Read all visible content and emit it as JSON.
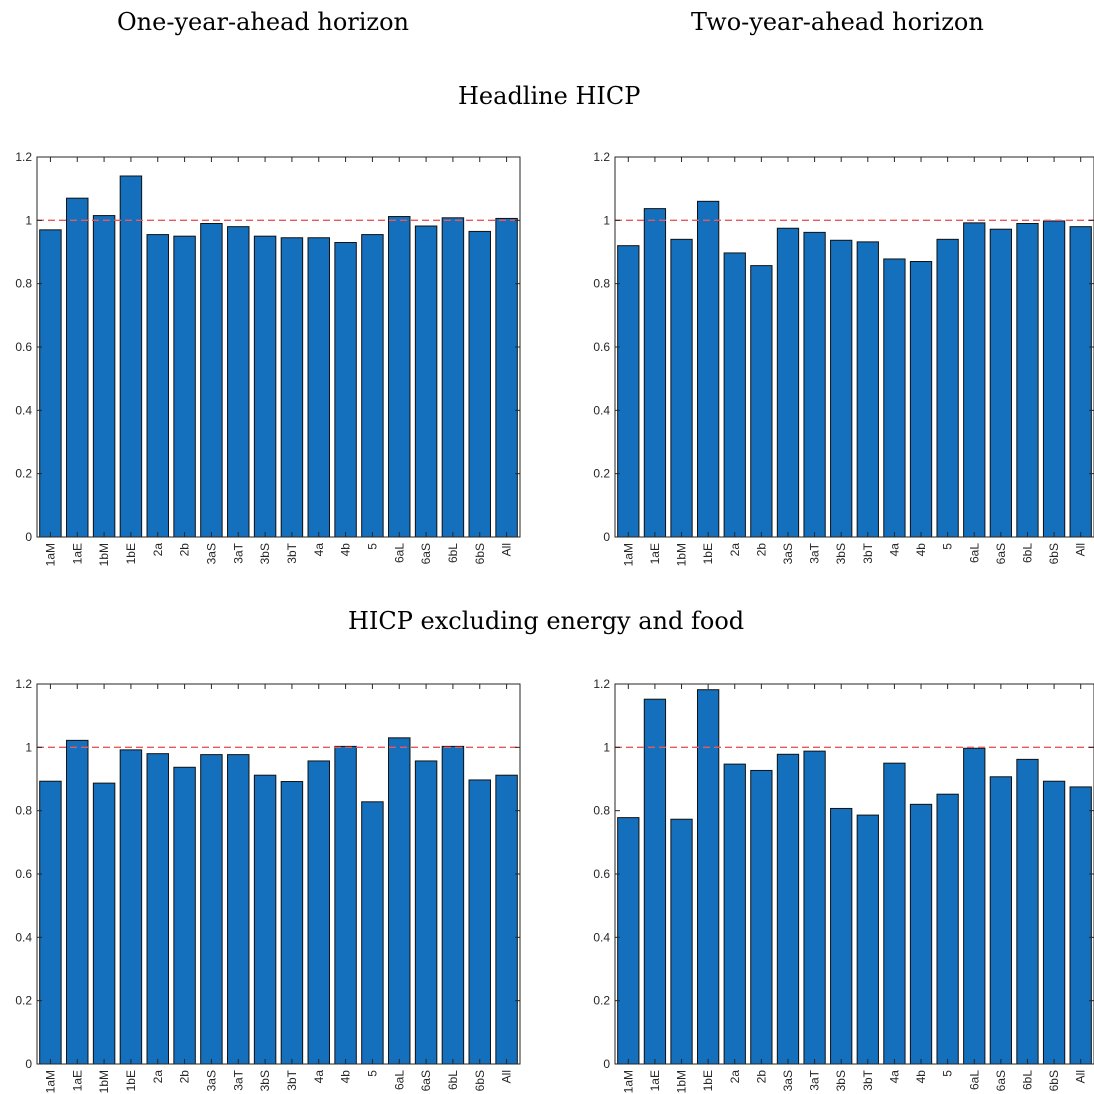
{
  "columns": [
    "One-year-ahead horizon",
    "Two-year-ahead horizon"
  ],
  "rows": [
    "Headline HICP",
    "HICP excluding energy and food"
  ],
  "colors": {
    "bar": "#1470bd",
    "bar_edge": "#111111",
    "ref_line": "#e8595b",
    "axis": "#262626"
  },
  "chart_data": [
    {
      "type": "bar",
      "categories": [
        "1aM",
        "1aE",
        "1bM",
        "1bE",
        "2a",
        "2b",
        "3aS",
        "3aT",
        "3bS",
        "3bT",
        "4a",
        "4b",
        "5",
        "6aL",
        "6aS",
        "6bL",
        "6bS",
        "All"
      ],
      "values": [
        0.97,
        1.07,
        1.015,
        1.14,
        0.955,
        0.95,
        0.99,
        0.98,
        0.95,
        0.945,
        0.945,
        0.93,
        0.955,
        1.012,
        0.982,
        1.008,
        0.965,
        1.006
      ],
      "ylim": [
        0,
        1.2
      ],
      "yticks": [
        "0",
        "0.2",
        "0.4",
        "0.6",
        "0.8",
        "1",
        "1.2"
      ],
      "reference_line": 1,
      "grid": false
    },
    {
      "type": "bar",
      "categories": [
        "1aM",
        "1aE",
        "1bM",
        "1bE",
        "2a",
        "2b",
        "3aS",
        "3aT",
        "3bS",
        "3bT",
        "4a",
        "4b",
        "5",
        "6aL",
        "6aS",
        "6bL",
        "6bS",
        "All"
      ],
      "values": [
        0.92,
        1.037,
        0.94,
        1.06,
        0.897,
        0.857,
        0.975,
        0.962,
        0.937,
        0.932,
        0.878,
        0.87,
        0.94,
        0.992,
        0.972,
        0.99,
        0.998,
        0.98
      ],
      "ylim": [
        0,
        1.2
      ],
      "yticks": [
        "0",
        "0.2",
        "0.4",
        "0.6",
        "0.8",
        "1",
        "1.2"
      ],
      "reference_line": 1,
      "grid": false
    },
    {
      "type": "bar",
      "categories": [
        "1aM",
        "1aE",
        "1bM",
        "1bE",
        "2a",
        "2b",
        "3aS",
        "3aT",
        "3bS",
        "3bT",
        "4a",
        "4b",
        "5",
        "6aL",
        "6aS",
        "6bL",
        "6bS",
        "All"
      ],
      "values": [
        0.893,
        1.022,
        0.887,
        0.992,
        0.98,
        0.937,
        0.977,
        0.977,
        0.912,
        0.892,
        0.957,
        1.003,
        0.828,
        1.03,
        0.957,
        1.003,
        0.897,
        0.912
      ],
      "ylim": [
        0,
        1.2
      ],
      "yticks": [
        "0",
        "0.2",
        "0.4",
        "0.6",
        "0.8",
        "1",
        "1.2"
      ],
      "reference_line": 1,
      "grid": false
    },
    {
      "type": "bar",
      "categories": [
        "1aM",
        "1aE",
        "1bM",
        "1bE",
        "2a",
        "2b",
        "3aS",
        "3aT",
        "3bS",
        "3bT",
        "4a",
        "4b",
        "5",
        "6aL",
        "6aS",
        "6bL",
        "6bS",
        "All"
      ],
      "values": [
        0.778,
        1.152,
        0.773,
        1.182,
        0.947,
        0.927,
        0.978,
        0.988,
        0.807,
        0.786,
        0.95,
        0.82,
        0.852,
        0.997,
        0.907,
        0.962,
        0.893,
        0.875
      ],
      "ylim": [
        0,
        1.2
      ],
      "yticks": [
        "0",
        "0.2",
        "0.4",
        "0.6",
        "0.8",
        "1",
        "1.2"
      ],
      "reference_line": 1,
      "grid": false
    }
  ]
}
